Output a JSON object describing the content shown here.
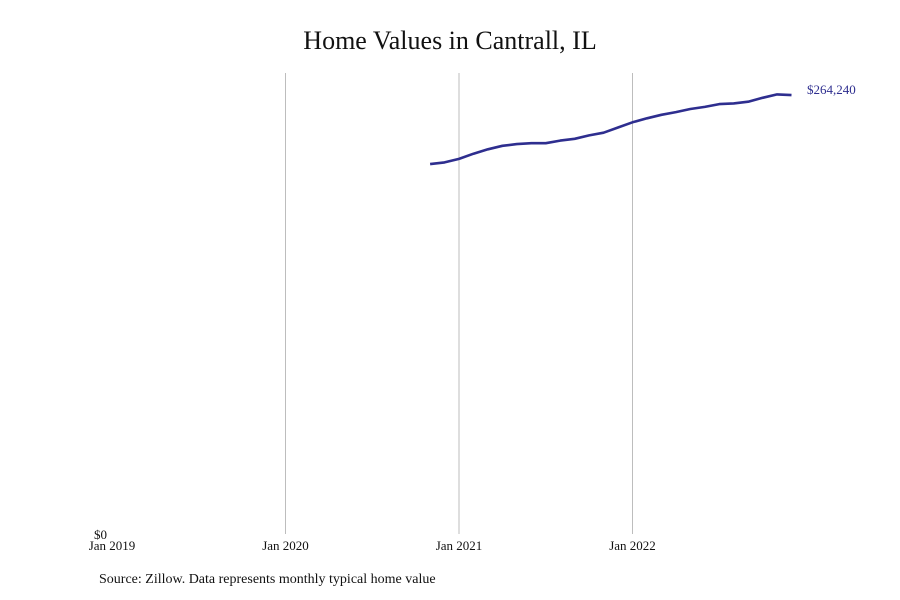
{
  "chart_data": {
    "type": "line",
    "title": "Home Values in Cantrall, IL",
    "source": "Source: Zillow. Data represents monthly typical home value",
    "xlim": [
      "2019-01",
      "2023-01"
    ],
    "ylim": [
      0,
      264240
    ],
    "x_ticks": [
      "Jan 2019",
      "Jan 2020",
      "Jan 2021",
      "Jan 2022"
    ],
    "y_tick_label": "$0",
    "end_label": "$264,240",
    "line_color": "#2e2e8f",
    "grid": "vertical",
    "series": [
      {
        "x": [
          "2020-11",
          "2020-12",
          "2021-01",
          "2021-02",
          "2021-03",
          "2021-04",
          "2021-05",
          "2021-06",
          "2021-07",
          "2021-08",
          "2021-09",
          "2021-10",
          "2021-11",
          "2021-12",
          "2022-01",
          "2022-02",
          "2022-03",
          "2022-04",
          "2022-05",
          "2022-06",
          "2022-07",
          "2022-08",
          "2022-09",
          "2022-10",
          "2022-11",
          "2022-12"
        ],
        "values": [
          212000,
          213000,
          215000,
          218000,
          220500,
          222500,
          223500,
          224000,
          224000,
          225500,
          226500,
          228500,
          230000,
          233000,
          236000,
          238300,
          240300,
          241800,
          243600,
          244800,
          246400,
          246800,
          247800,
          250000,
          252000,
          251600
        ]
      }
    ]
  }
}
